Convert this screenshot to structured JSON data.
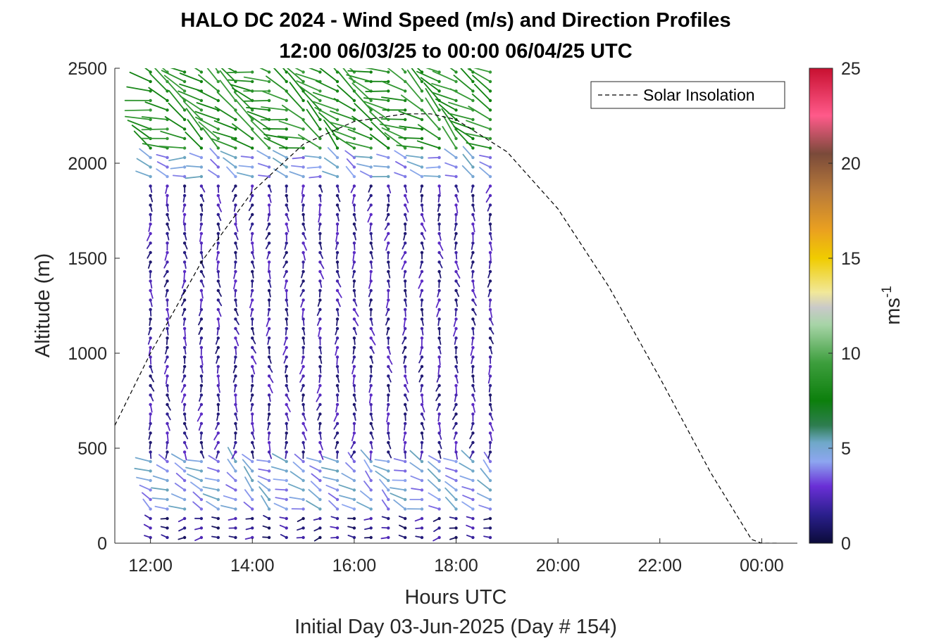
{
  "chart_data": {
    "type": "wind_barb_profile",
    "title": "HALO DC 2024 - Wind Speed (m/s) and Direction Profiles",
    "subtitle": "12:00 06/03/25 to 00:00 06/04/25  UTC",
    "xlabel": "Hours UTC",
    "xlabel2": "Initial Day 03-Jun-2025 (Day # 154)",
    "ylabel": "Altitude (m)",
    "xlim": [
      11.3,
      24.7
    ],
    "ylim": [
      0,
      2500
    ],
    "xticks": [
      12,
      14,
      16,
      18,
      20,
      22,
      24
    ],
    "xtick_labels": [
      "12:00",
      "14:00",
      "16:00",
      "18:00",
      "20:00",
      "22:00",
      "00:00"
    ],
    "yticks": [
      0,
      500,
      1000,
      1500,
      2000,
      2500
    ],
    "ytick_labels": [
      "0",
      "500",
      "1000",
      "1500",
      "2000",
      "2500"
    ],
    "colorbar": {
      "label_base": "ms",
      "label_exp": "-1",
      "range": [
        0,
        25
      ],
      "ticks": [
        0,
        5,
        10,
        15,
        20,
        25
      ],
      "tick_labels": [
        "0",
        "5",
        "10",
        "15",
        "20",
        "25"
      ],
      "stops": [
        {
          "v": 0,
          "c": "#0b0b3a"
        },
        {
          "v": 1.5,
          "c": "#2a1f8c"
        },
        {
          "v": 3,
          "c": "#6a2fd6"
        },
        {
          "v": 4.3,
          "c": "#8da6f0"
        },
        {
          "v": 5.3,
          "c": "#6fa8c8"
        },
        {
          "v": 6.2,
          "c": "#2e7d50"
        },
        {
          "v": 7.5,
          "c": "#0c7f0c"
        },
        {
          "v": 9.5,
          "c": "#3d9e3d"
        },
        {
          "v": 11.5,
          "c": "#a7d4a7"
        },
        {
          "v": 12.4,
          "c": "#c9c9c9"
        },
        {
          "v": 13.2,
          "c": "#f1e89a"
        },
        {
          "v": 15,
          "c": "#f0cc00"
        },
        {
          "v": 16.5,
          "c": "#eaa020"
        },
        {
          "v": 18.5,
          "c": "#b87a3a"
        },
        {
          "v": 20.5,
          "c": "#7a4a3a"
        },
        {
          "v": 22.5,
          "c": "#ff5a8a"
        },
        {
          "v": 25,
          "c": "#c81030"
        }
      ]
    },
    "legend": {
      "label": "Solar Insolation",
      "position": "top-right",
      "style": "dashed"
    },
    "solar_insolation": {
      "x": [
        11.3,
        12.0,
        13.0,
        14.0,
        15.0,
        16.0,
        17.0,
        17.5,
        18.0,
        19.0,
        20.0,
        21.0,
        22.0,
        23.0,
        23.8,
        24.0,
        24.3
      ],
      "y": [
        620,
        1000,
        1480,
        1850,
        2100,
        2220,
        2260,
        2260,
        2230,
        2060,
        1760,
        1350,
        870,
        370,
        20,
        0,
        0
      ]
    },
    "wind_profiles": {
      "times": [
        12.0,
        12.33,
        12.67,
        13.0,
        13.33,
        13.67,
        14.0,
        14.33,
        14.67,
        15.0,
        15.33,
        15.67,
        16.0,
        16.33,
        16.67,
        17.0,
        17.33,
        17.67,
        18.0,
        18.33,
        18.67
      ],
      "altitude_step_m": 50,
      "altitude_max_m": 2500,
      "bands": [
        {
          "z": [
            0,
            150
          ],
          "speed": 1.5,
          "direction_deg": 270
        },
        {
          "z": [
            150,
            450
          ],
          "speed": 4.5,
          "direction_deg": 300
        },
        {
          "z": [
            450,
            1900
          ],
          "speed": 1.8,
          "direction_deg": 180
        },
        {
          "z": [
            1900,
            2050
          ],
          "speed": 4.5,
          "direction_deg": 290
        },
        {
          "z": [
            2050,
            2500
          ],
          "speed": 8.5,
          "direction_deg": 300
        }
      ]
    }
  }
}
